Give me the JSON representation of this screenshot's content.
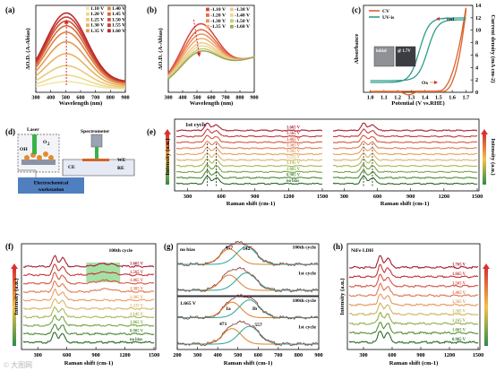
{
  "panels": {
    "a": {
      "label": "(a)",
      "chart_data": {
        "type": "line",
        "xlabel": "Wavelength (nm)",
        "ylabel": "ΔO.D. (A-Abias)",
        "xlim": [
          300,
          900
        ],
        "xticks": [
          300,
          400,
          500,
          600,
          700,
          800,
          900
        ],
        "legend_position": "top-right",
        "series": [
          {
            "name": "1.10 V",
            "color": "#f2e6a8",
            "peak": 0.1
          },
          {
            "name": "1.20 V",
            "color": "#efd98e",
            "peak": 0.18
          },
          {
            "name": "1.25 V",
            "color": "#ecc878",
            "peak": 0.3
          },
          {
            "name": "1.30 V",
            "color": "#e8b464",
            "peak": 0.45
          },
          {
            "name": "1.35 V",
            "color": "#e39c54",
            "peak": 0.6
          },
          {
            "name": "1.40 V",
            "color": "#dd8246",
            "peak": 0.72
          },
          {
            "name": "1.45 V",
            "color": "#d66a3c",
            "peak": 0.8
          },
          {
            "name": "1.50 V",
            "color": "#cf5236",
            "peak": 0.86
          },
          {
            "name": "1.55 V",
            "color": "#c63c32",
            "peak": 0.91
          },
          {
            "name": "1.60 V",
            "color": "#bb2a2e",
            "peak": 0.96
          }
        ],
        "peak_wavelength": 505
      }
    },
    "b": {
      "label": "(b)",
      "chart_data": {
        "type": "line",
        "xlabel": "Wavelength (nm)",
        "ylabel": "ΔO.D. (A-Abias)",
        "xlim": [
          300,
          900
        ],
        "xticks": [
          300,
          400,
          500,
          600,
          700,
          800,
          900
        ],
        "legend_position": "top-right",
        "series": [
          {
            "name": "-1.10 V",
            "color": "#d8443a",
            "peak": 0.92
          },
          {
            "name": "-1.20 V",
            "color": "#e56a4a",
            "peak": 0.84
          },
          {
            "name": "-1.30 V",
            "color": "#eb8f5c",
            "peak": 0.78
          },
          {
            "name": "-1.35 V",
            "color": "#efae72",
            "peak": 0.72
          },
          {
            "name": "-1.38 V",
            "color": "#f0c98a",
            "peak": 0.66
          },
          {
            "name": "-1.40 V",
            "color": "#e9d89a",
            "peak": 0.62
          },
          {
            "name": "-1.50 V",
            "color": "#c9c878",
            "peak": 0.58
          },
          {
            "name": "-1.60 V",
            "color": "#9aa855",
            "peak": 0.55
          }
        ],
        "peak_wavelength": 515
      }
    },
    "c": {
      "label": "(c)",
      "chart_data": {
        "type": "line",
        "xlabel": "Potential (V vs.RHE)",
        "ylabel_left": "Absorbance",
        "ylabel_right": "Current density (mA cm-2)",
        "xlim": [
          0.95,
          1.75
        ],
        "xticks": [
          1.0,
          1.1,
          1.2,
          1.3,
          1.4,
          1.5,
          1.6,
          1.7
        ],
        "xtick_labels": [
          "1.0",
          "1.1",
          "1.2",
          "1.3",
          "1.4",
          "1.5",
          "1.6",
          "1.7"
        ],
        "y2lim": [
          0,
          14
        ],
        "y2ticks": [
          0,
          2,
          4,
          6,
          8,
          10,
          12,
          14
        ],
        "legend_position": "top-left",
        "series": [
          {
            "name": "CV",
            "color": "#d9622b"
          },
          {
            "name": "UV-is",
            "color": "#2e9c8a"
          }
        ],
        "annotations": [
          "red",
          "Ox",
          "initial",
          "@ 1.7V"
        ]
      }
    },
    "d": {
      "label": "(d)",
      "labels": {
        "laser": "Laser",
        "o2": "O",
        "o2_sub": "2",
        "oh": "OH",
        "spectrometer": "Spectrometer",
        "we": "WE",
        "re": "RE",
        "ce": "CE",
        "workstation_line1": "Electrochemical",
        "workstation_line2": "workstation"
      }
    },
    "e": {
      "label": "(e)",
      "chart_data": {
        "type": "line",
        "title": "1st cycle",
        "xlabel": "Raman shift (cm-1)",
        "ylabel": "Intensity (a.u.)",
        "xlim": [
          200,
          1500
        ],
        "xticks": [
          300,
          600,
          900,
          1200,
          1500
        ],
        "traces": [
          "no bias",
          "0.905 V",
          "1.065 V",
          "1.145 V",
          "1.225 V",
          "1.305 V",
          "1.385 V",
          "1.465 V",
          "1.565 V",
          "1.665 V"
        ],
        "trace_colors": [
          "#2d6b2a",
          "#4f8a36",
          "#7ba544",
          "#a9b95a",
          "#d9b56a",
          "#e7a062",
          "#e07d52",
          "#d45b45",
          "#c63a3b",
          "#a81f34"
        ],
        "peaks": [
          475,
          555
        ]
      }
    },
    "f": {
      "label": "(f)",
      "chart_data": {
        "type": "line",
        "title": "100th cycle",
        "xlabel": "Raman shift (cm-1)",
        "ylabel": "Intensity (a.u.)",
        "xlim": [
          150,
          1500
        ],
        "xticks": [
          300,
          600,
          900,
          1200,
          1500
        ],
        "traces": [
          "no bias",
          "0.905 V",
          "1.065 V",
          "1.145 V",
          "1.225 V",
          "1.305 V",
          "1.385 V",
          "1.465 V",
          "1.565 V",
          "1.665 V"
        ],
        "trace_colors": [
          "#2d6b2a",
          "#4f8a36",
          "#7ba544",
          "#a9b95a",
          "#d9b56a",
          "#e7a062",
          "#e07d52",
          "#d45b45",
          "#c63a3b",
          "#a81f34"
        ],
        "highlight_range": [
          800,
          1150
        ]
      }
    },
    "g": {
      "label": "(g)",
      "chart_data": {
        "type": "line",
        "xlabel": "Raman shift (cm-1)",
        "xlim": [
          200,
          900
        ],
        "xticks": [
          200,
          300,
          400,
          500,
          600,
          700,
          800,
          900
        ],
        "top": {
          "title": "no bias",
          "peaks": [
            457,
            542
          ],
          "traces": [
            "1st cycle",
            "100th cycle"
          ]
        },
        "bottom": {
          "title": "1.665 V",
          "peak_labels": [
            "Ia",
            "Ib"
          ],
          "peaks": [
            471,
            557
          ],
          "traces": [
            "1st cycle",
            "100th cycle"
          ]
        }
      }
    },
    "h": {
      "label": "(h)",
      "chart_data": {
        "type": "line",
        "title": "NiFe LDH",
        "xlabel": "Raman shift (cm-1)",
        "ylabel": "Intensity (a.u.)",
        "xlim": [
          150,
          1500
        ],
        "xticks": [
          300,
          600,
          900,
          1200,
          1500
        ],
        "traces": [
          "0.965 V",
          "1.065 V",
          "1.165 V",
          "1.265 V",
          "1.365 V",
          "1.465 V",
          "1.565 V",
          "1.665 V",
          "1.765 V"
        ],
        "trace_colors": [
          "#2d6b2a",
          "#5b8f3a",
          "#95ad4f",
          "#cdb561",
          "#e49a5e",
          "#df7650",
          "#d45444",
          "#c3363a",
          "#a61d33"
        ]
      }
    }
  },
  "watermark": "© 大图网"
}
